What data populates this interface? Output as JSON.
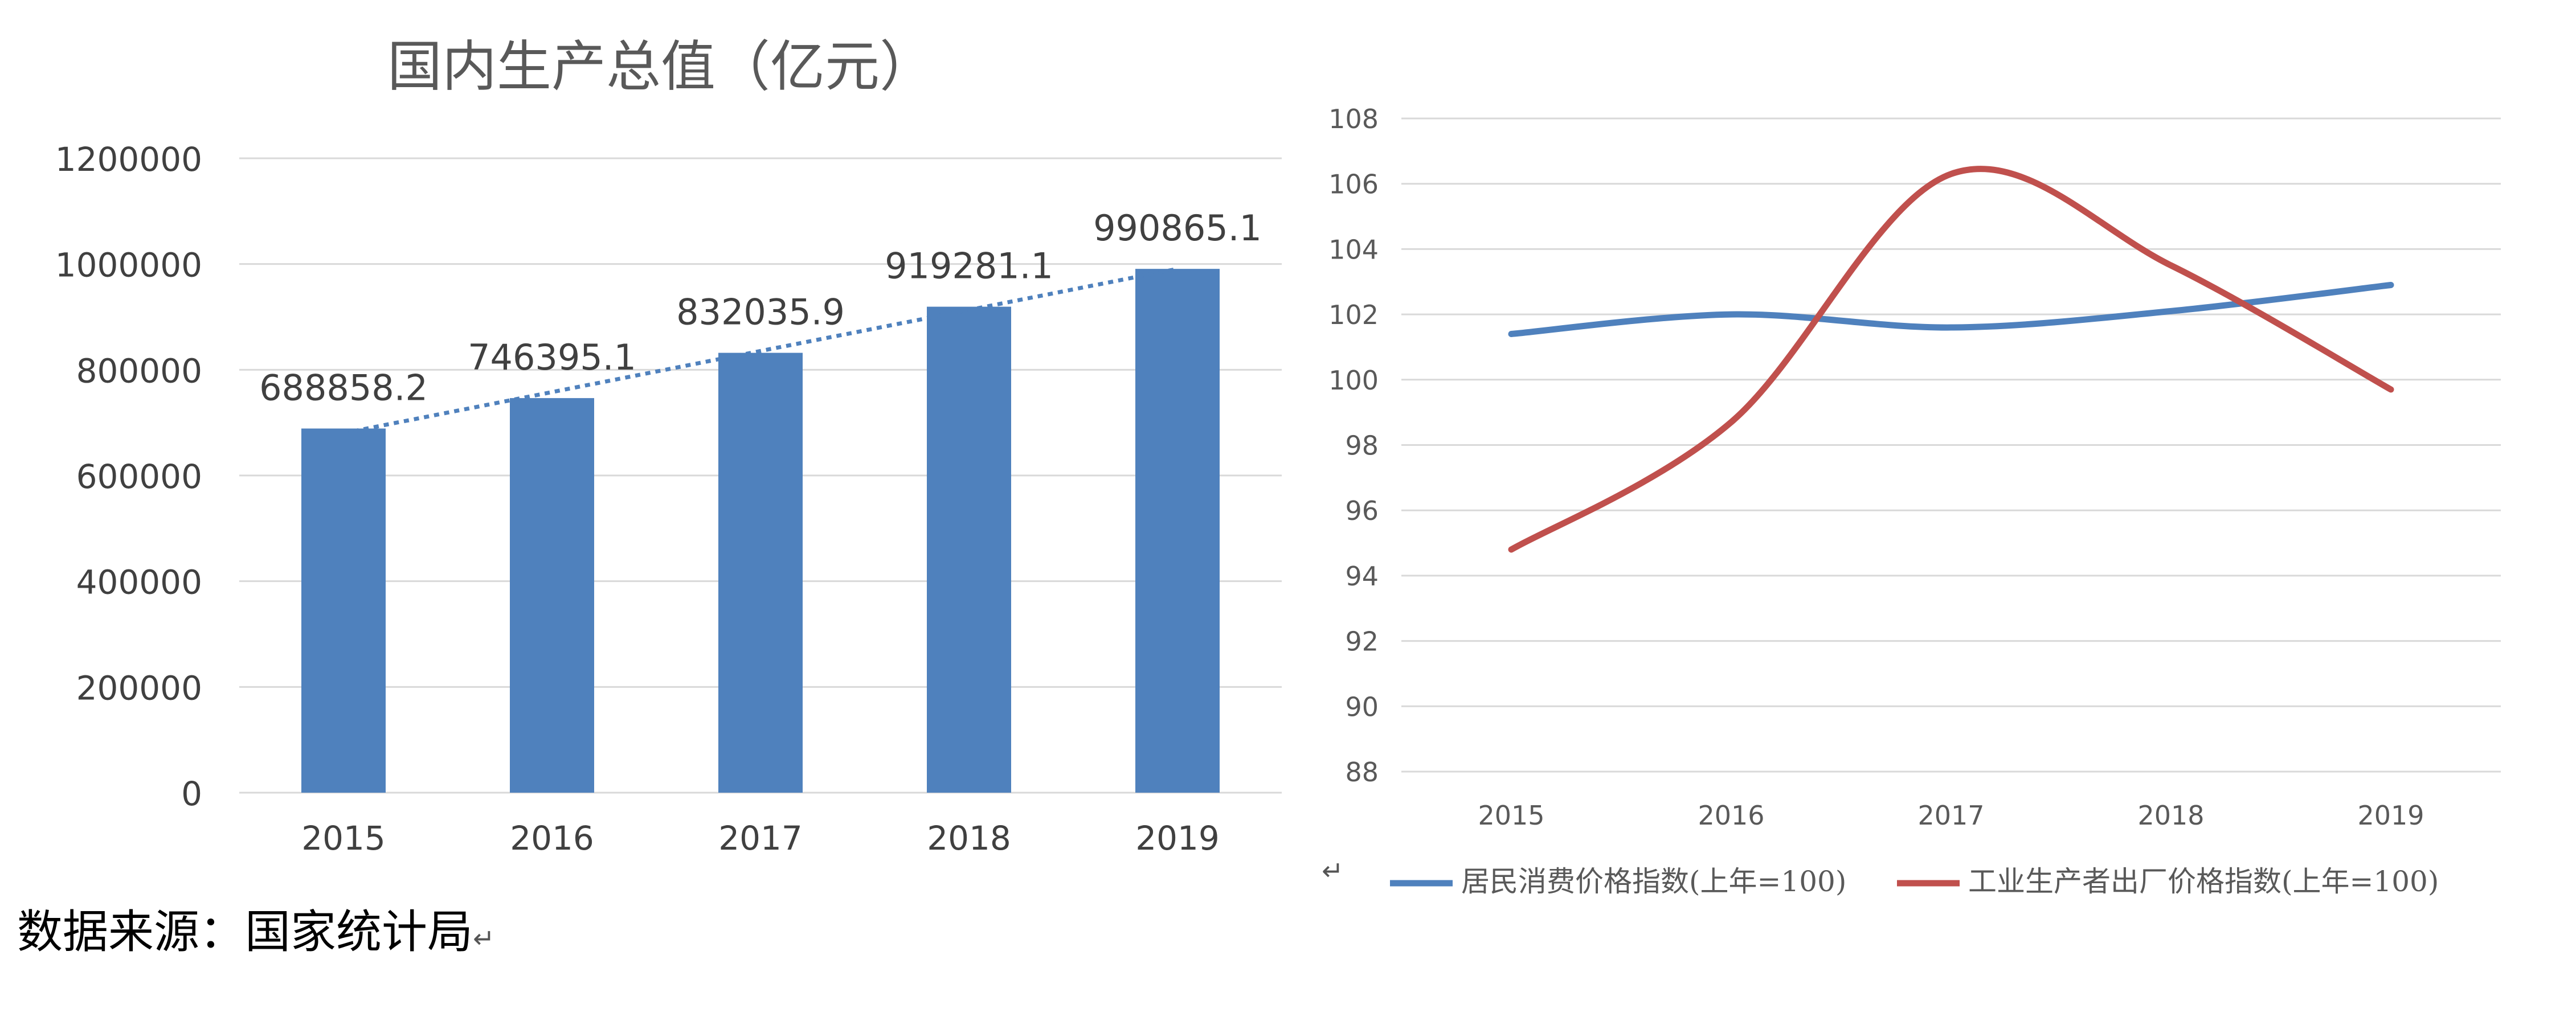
{
  "charts": {
    "gdp": {
      "title": "国内生产总值（亿元）"
    }
  },
  "chart_data": [
    {
      "type": "bar",
      "title": "国内生产总值（亿元）",
      "xlabel": "",
      "ylabel": "",
      "categories": [
        "2015",
        "2016",
        "2017",
        "2018",
        "2019"
      ],
      "series": [
        {
          "values": [
            688858.2,
            746395.1,
            832035.9,
            919281.1,
            990865.1
          ]
        }
      ],
      "data_labels": [
        "688858.2",
        "746395.1",
        "832035.9",
        "919281.1",
        "990865.1"
      ],
      "trendline": "linear, dotted",
      "ylim": [
        0,
        1200000
      ],
      "yticks": [
        "0",
        "200000",
        "400000",
        "600000",
        "800000",
        "1000000",
        "1200000"
      ],
      "grid": true,
      "colors": {
        "bar": "#4F81BD",
        "trend": "#4F81BD"
      }
    },
    {
      "type": "line",
      "title": "",
      "xlabel": "",
      "ylabel": "",
      "categories": [
        "2015",
        "2016",
        "2017",
        "2018",
        "2019"
      ],
      "series": [
        {
          "name": "居民消费价格指数(上年=100)",
          "values": [
            101.4,
            102.0,
            101.6,
            102.1,
            102.9
          ],
          "color": "#4F81BD"
        },
        {
          "name": "工业生产者出厂价格指数(上年=100)",
          "values": [
            94.8,
            98.7,
            106.3,
            103.5,
            99.7
          ],
          "color": "#C0504D"
        }
      ],
      "ylim": [
        88,
        108
      ],
      "yticks": [
        "88",
        "90",
        "92",
        "94",
        "96",
        "98",
        "100",
        "102",
        "104",
        "106",
        "108"
      ],
      "grid": true,
      "legend": "bottom"
    }
  ],
  "source_text": "数据来源：国家统计局",
  "return_mark": "↵"
}
